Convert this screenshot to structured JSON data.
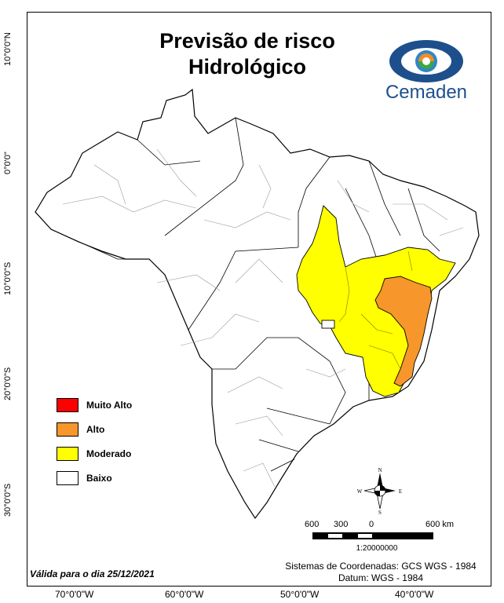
{
  "title_line1": "Previsão de risco",
  "title_line2": "Hidrológico",
  "logo_text": "Cemaden",
  "lat_labels": [
    "10°0'0\"N",
    "0°0'0\"",
    "10°0'0\"S",
    "20°0'0\"S",
    "30°0'0\"S"
  ],
  "lon_labels": [
    "70°0'0\"W",
    "60°0'0\"W",
    "50°0'0\"W",
    "40°0'0\"W"
  ],
  "legend": [
    {
      "label": "Muito Alto",
      "color": "#ff0000"
    },
    {
      "label": "Alto",
      "color": "#f7962b"
    },
    {
      "label": "Moderado",
      "color": "#ffff00"
    },
    {
      "label": "Baixo",
      "color": "#ffffff"
    }
  ],
  "valid_text": "Válida para o dia 25/12/2021",
  "crs_line1": "Sistemas de Coordenadas: GCS WGS - 1984",
  "crs_line2": "Datum: WGS - 1984",
  "scale": {
    "labels": [
      "600",
      "300",
      "0",
      "600 km"
    ],
    "ratio": "1:20000000"
  },
  "compass": {
    "n": "N",
    "s": "S",
    "e": "E",
    "w": "W"
  },
  "colors": {
    "alto": "#f7962b",
    "moderado": "#ffff00",
    "baixo": "#ffffff",
    "logo_blue": "#1d4f8c"
  }
}
